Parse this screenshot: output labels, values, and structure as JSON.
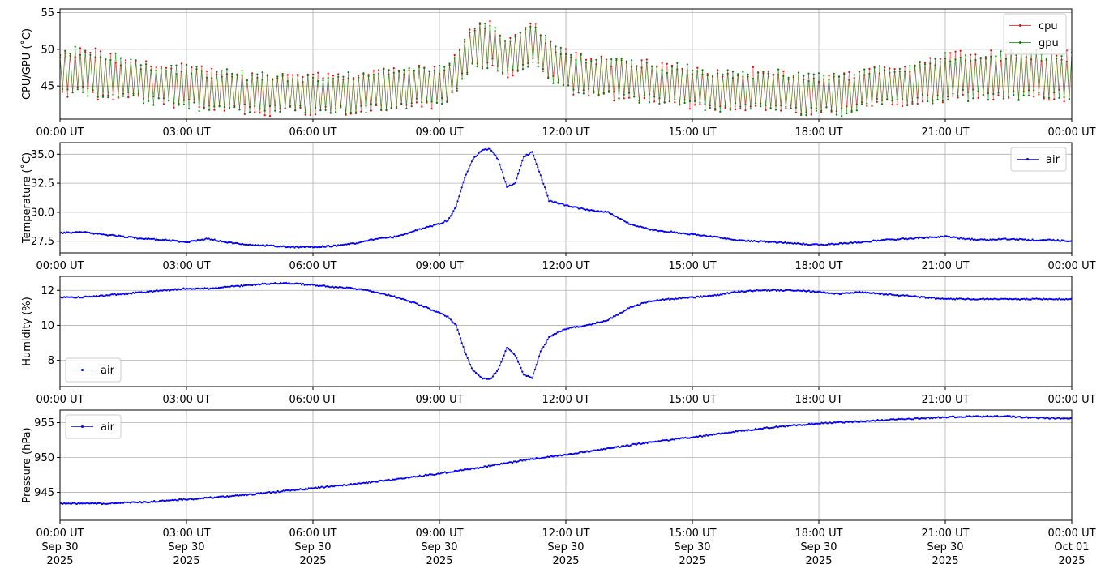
{
  "colors": {
    "cpu": "#ff0000",
    "gpu": "#008000",
    "air": "#0000ff",
    "grid": "#b0b0b0",
    "axis": "#000000"
  },
  "x_axis": {
    "time_labels": [
      "00:00 UT",
      "03:00 UT",
      "06:00 UT",
      "09:00 UT",
      "12:00 UT",
      "15:00 UT",
      "18:00 UT",
      "21:00 UT",
      "00:00 UT"
    ],
    "date_labels": [
      "Sep 30",
      "Sep 30",
      "Sep 30",
      "Sep 30",
      "Sep 30",
      "Sep 30",
      "Sep 30",
      "Sep 30",
      "Oct 01"
    ],
    "year_labels": [
      "2025",
      "2025",
      "2025",
      "2025",
      "2025",
      "2025",
      "2025",
      "2025",
      "2025"
    ],
    "range_hours": [
      0,
      24
    ]
  },
  "chart_data": [
    {
      "type": "line",
      "ylabel": "CPU/GPU (˚C)",
      "ylim": [
        40.5,
        55.5
      ],
      "yticks": [
        45,
        50,
        55
      ],
      "ytick_labels": [
        "45",
        "50",
        "55"
      ],
      "grid": true,
      "legend": "top-right",
      "x_unit": "hours UT since 2025-09-30 00:00",
      "series": [
        {
          "name": "cpu",
          "x": [
            0,
            0.5,
            1,
            1.5,
            2,
            2.5,
            3,
            3.5,
            4,
            4.5,
            5,
            5.5,
            6,
            6.5,
            7,
            7.5,
            8,
            8.5,
            9,
            9.3,
            9.6,
            9.9,
            10.2,
            10.5,
            10.8,
            11.1,
            11.4,
            11.7,
            12,
            12.5,
            13,
            13.5,
            14,
            14.5,
            15,
            15.5,
            16,
            16.5,
            17,
            17.5,
            18,
            18.5,
            19,
            19.5,
            20,
            20.5,
            21,
            21.5,
            22,
            22.5,
            23,
            23.5,
            24
          ],
          "y": [
            47,
            47,
            46.5,
            46,
            45.5,
            45,
            45,
            44.5,
            44.5,
            44,
            44,
            44,
            44,
            44,
            44,
            44.5,
            44.5,
            45,
            45,
            46,
            49,
            51,
            51,
            49,
            49,
            51,
            50,
            48,
            47,
            46.5,
            46,
            46,
            45.5,
            45,
            45,
            44.5,
            44.5,
            44.5,
            44.5,
            44,
            44,
            44,
            44.5,
            45,
            45,
            45.5,
            46,
            46.5,
            46.5,
            46.5,
            46.5,
            46.5,
            46.5
          ],
          "spread": [
            3.5,
            3.5,
            3.5,
            3,
            3,
            3,
            3,
            3,
            3,
            3,
            3,
            3,
            3,
            3,
            3,
            3,
            3,
            3,
            3,
            3,
            3,
            3.5,
            3.5,
            3,
            3,
            3.5,
            3,
            3,
            3,
            3,
            3,
            3,
            3,
            3,
            3,
            3,
            3,
            3,
            3,
            3,
            3,
            3,
            3,
            3,
            3,
            3,
            3.5,
            3.5,
            3.5,
            3.5,
            3.5,
            3.5,
            3.5
          ]
        },
        {
          "name": "gpu",
          "x": [
            0,
            0.5,
            1,
            1.5,
            2,
            2.5,
            3,
            3.5,
            4,
            4.5,
            5,
            5.5,
            6,
            6.5,
            7,
            7.5,
            8,
            8.5,
            9,
            9.3,
            9.6,
            9.9,
            10.2,
            10.5,
            10.8,
            11.1,
            11.4,
            11.7,
            12,
            12.5,
            13,
            13.5,
            14,
            14.5,
            15,
            15.5,
            16,
            16.5,
            17,
            17.5,
            18,
            18.5,
            19,
            19.5,
            20,
            20.5,
            21,
            21.5,
            22,
            22.5,
            23,
            23.5,
            24
          ],
          "y": [
            47,
            47,
            46.5,
            46,
            45.5,
            45,
            45,
            44.5,
            44.5,
            44,
            44,
            44,
            44,
            44,
            44,
            44.5,
            44.5,
            45,
            45,
            46,
            49,
            51,
            51,
            49,
            49,
            51,
            50,
            48,
            47,
            46.5,
            46,
            46,
            45.5,
            45,
            45,
            44.5,
            44.5,
            44.5,
            44.5,
            44,
            44,
            44,
            44.5,
            45,
            45,
            45.5,
            46,
            46.5,
            46.5,
            46.5,
            46.5,
            46.5,
            46.5
          ],
          "spread": [
            3.5,
            3.5,
            3.5,
            3,
            3,
            3,
            3,
            3,
            3,
            3,
            3,
            3,
            3,
            3,
            3,
            3,
            3,
            3,
            3,
            3,
            3,
            3.5,
            3.5,
            3,
            3,
            3.5,
            3,
            3,
            3,
            3,
            3,
            3,
            3,
            3,
            3,
            3,
            3,
            3,
            3,
            3,
            3,
            3,
            3,
            3,
            3,
            3,
            3.5,
            3.5,
            3.5,
            3.5,
            3.5,
            3.5,
            3.5
          ]
        }
      ]
    },
    {
      "type": "line",
      "ylabel": "Temperature (˚C)",
      "ylim": [
        26.5,
        36.0
      ],
      "yticks": [
        27.5,
        30.0,
        32.5,
        35.0
      ],
      "ytick_labels": [
        "27.5",
        "30.0",
        "32.5",
        "35.0"
      ],
      "grid": true,
      "legend": "top-right",
      "series": [
        {
          "name": "air",
          "x": [
            0,
            0.5,
            1,
            1.5,
            2,
            2.5,
            3,
            3.5,
            4,
            4.5,
            5,
            5.5,
            6,
            6.5,
            7,
            7.5,
            8,
            8.5,
            9,
            9.2,
            9.4,
            9.6,
            9.8,
            10,
            10.2,
            10.4,
            10.6,
            10.8,
            11,
            11.2,
            11.4,
            11.6,
            11.8,
            12,
            12.5,
            13,
            13.5,
            14,
            14.5,
            15,
            15.5,
            16,
            16.5,
            17,
            17.5,
            18,
            18.5,
            19,
            19.5,
            20,
            20.5,
            21,
            21.5,
            22,
            22.5,
            23,
            23.5,
            24
          ],
          "y": [
            28.2,
            28.3,
            28.1,
            27.9,
            27.7,
            27.6,
            27.4,
            27.7,
            27.4,
            27.2,
            27.1,
            27.0,
            27.0,
            27.1,
            27.3,
            27.7,
            27.9,
            28.5,
            29.0,
            29.3,
            30.5,
            33.0,
            34.6,
            35.3,
            35.5,
            34.5,
            32.2,
            32.5,
            34.8,
            35.2,
            33.2,
            31.0,
            30.8,
            30.6,
            30.2,
            30.0,
            29.0,
            28.5,
            28.3,
            28.1,
            27.9,
            27.6,
            27.5,
            27.4,
            27.3,
            27.2,
            27.3,
            27.4,
            27.6,
            27.7,
            27.8,
            27.9,
            27.7,
            27.6,
            27.7,
            27.6,
            27.6,
            27.5
          ]
        }
      ]
    },
    {
      "type": "line",
      "ylabel": "Humidity (%)",
      "ylim": [
        6.5,
        12.8
      ],
      "yticks": [
        8,
        10,
        12
      ],
      "ytick_labels": [
        "8",
        "10",
        "12"
      ],
      "grid": true,
      "legend": "bottom-left",
      "series": [
        {
          "name": "air",
          "x": [
            0,
            0.5,
            1,
            1.5,
            2,
            2.5,
            3,
            3.5,
            4,
            4.5,
            5,
            5.5,
            6,
            6.5,
            7,
            7.5,
            8,
            8.5,
            9,
            9.2,
            9.4,
            9.6,
            9.8,
            10,
            10.2,
            10.4,
            10.6,
            10.8,
            11,
            11.2,
            11.4,
            11.6,
            11.8,
            12,
            12.5,
            13,
            13.5,
            14,
            14.5,
            15,
            15.5,
            16,
            16.5,
            17,
            17.5,
            18,
            18.5,
            19,
            19.5,
            20,
            20.5,
            21,
            21.5,
            22,
            22.5,
            23,
            23.5,
            24
          ],
          "y": [
            11.6,
            11.6,
            11.7,
            11.8,
            11.9,
            12.0,
            12.1,
            12.1,
            12.2,
            12.3,
            12.4,
            12.4,
            12.3,
            12.2,
            12.1,
            11.9,
            11.6,
            11.2,
            10.7,
            10.5,
            10.0,
            8.5,
            7.4,
            7.0,
            6.9,
            7.5,
            8.7,
            8.3,
            7.2,
            7.0,
            8.5,
            9.3,
            9.6,
            9.8,
            10.0,
            10.3,
            11.0,
            11.4,
            11.5,
            11.6,
            11.7,
            11.9,
            12.0,
            12.0,
            12.0,
            11.9,
            11.8,
            11.9,
            11.8,
            11.7,
            11.6,
            11.5,
            11.5,
            11.5,
            11.5,
            11.5,
            11.5,
            11.5
          ]
        }
      ]
    },
    {
      "type": "line",
      "ylabel": "Pressure (hPa)",
      "ylim": [
        941.0,
        956.8
      ],
      "yticks": [
        945,
        950,
        955
      ],
      "ytick_labels": [
        "945",
        "950",
        "955"
      ],
      "grid": true,
      "legend": "top-left",
      "series": [
        {
          "name": "air",
          "x": [
            0,
            1,
            2,
            3,
            4,
            5,
            6,
            7,
            8,
            9,
            10,
            11,
            12,
            13,
            14,
            15,
            16,
            17,
            18,
            19,
            20,
            21,
            22,
            22.5,
            23,
            24
          ],
          "y": [
            943.4,
            943.4,
            943.6,
            944.0,
            944.4,
            945.0,
            945.6,
            946.2,
            946.9,
            947.7,
            948.6,
            949.6,
            950.4,
            951.3,
            952.2,
            952.9,
            953.7,
            954.4,
            954.9,
            955.2,
            955.5,
            955.8,
            955.9,
            955.9,
            955.7,
            955.6
          ]
        }
      ]
    }
  ]
}
